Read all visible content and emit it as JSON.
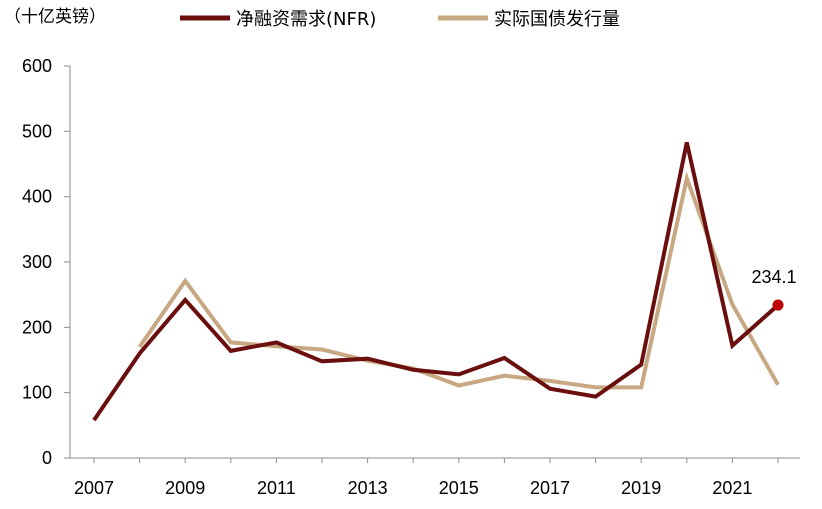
{
  "chart_data": {
    "type": "line",
    "unit_label": "（十亿英镑）",
    "x": [
      "2007",
      "2008",
      "2009",
      "2010",
      "2011",
      "2012",
      "2013",
      "2014",
      "2015",
      "2016",
      "2017",
      "2018",
      "2019",
      "2020",
      "2021",
      "2022"
    ],
    "x_tick_labels": [
      "2007",
      "2009",
      "2011",
      "2013",
      "2015",
      "2017",
      "2019",
      "2021"
    ],
    "y_ticks": [
      0,
      100,
      200,
      300,
      400,
      500,
      600
    ],
    "ylim": [
      0,
      600
    ],
    "series": [
      {
        "name": "净融资需求(NFR)",
        "color": "#6b0e0e",
        "values": [
          58,
          160,
          242,
          164,
          177,
          148,
          152,
          135,
          128,
          153,
          106,
          94,
          143,
          483,
          172,
          234.1
        ]
      },
      {
        "name": "实际国债发行量",
        "color": "#c8a882",
        "values": [
          null,
          170,
          271,
          177,
          171,
          166,
          149,
          137,
          111,
          126,
          118,
          108,
          108,
          428,
          235,
          112
        ]
      }
    ],
    "annotation": {
      "series_index": 0,
      "x": "2022",
      "value": 234.1,
      "text": "234.1",
      "marker_color": "#c00000"
    },
    "legend_position": "top",
    "grid": false
  }
}
